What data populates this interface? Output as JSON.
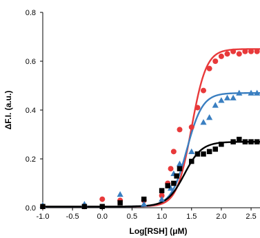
{
  "chart_data": {
    "type": "scatter",
    "title": "",
    "xlabel": "Log[RSH] (μM)",
    "ylabel": "ΔF.I. (a.u.)",
    "xlim": [
      -1.0,
      2.65
    ],
    "ylim": [
      0,
      0.8
    ],
    "x_ticks": [
      -1.0,
      -0.5,
      0.0,
      0.5,
      1.0,
      1.5,
      2.0,
      2.5
    ],
    "x_tick_labels": [
      "-1.0",
      "-0.5",
      "0.0",
      "0.5",
      "1.0",
      "1.5",
      "2.0",
      "2.5"
    ],
    "y_ticks": [
      0.0,
      0.2,
      0.4,
      0.6,
      0.8
    ],
    "y_tick_labels": [
      "0.0",
      "0.2",
      "0.4",
      "0.6",
      "0.8"
    ],
    "grid": false,
    "legend": "none",
    "series": [
      {
        "marker": "circle",
        "color": "#e8393a",
        "x": [
          -1.0,
          -0.3,
          0.0,
          0.3,
          0.7,
          1.0,
          1.1,
          1.15,
          1.2,
          1.3,
          1.5,
          1.6,
          1.7,
          1.8,
          1.9,
          2.0,
          2.1,
          2.2,
          2.3,
          2.4,
          2.5,
          2.6
        ],
        "y": [
          0.005,
          0.005,
          0.035,
          0.03,
          0.03,
          0.05,
          0.1,
          0.16,
          0.23,
          0.32,
          0.33,
          0.41,
          0.48,
          0.57,
          0.6,
          0.62,
          0.63,
          0.64,
          0.63,
          0.64,
          0.64,
          0.64
        ],
        "fit": {
          "bottom": 0.005,
          "top": 0.65,
          "ec50_log": 1.5,
          "hill": 3.5
        }
      },
      {
        "marker": "triangle",
        "color": "#3a7fc1",
        "x": [
          -1.0,
          -0.3,
          0.3,
          0.7,
          1.0,
          1.15,
          1.2,
          1.3,
          1.5,
          1.7,
          1.8,
          1.9,
          2.0,
          2.1,
          2.2,
          2.3,
          2.5,
          2.6
        ],
        "y": [
          0.01,
          0.015,
          0.055,
          0.015,
          0.035,
          0.08,
          0.14,
          0.18,
          0.23,
          0.35,
          0.37,
          0.42,
          0.44,
          0.45,
          0.45,
          0.47,
          0.47,
          0.47
        ],
        "fit": {
          "bottom": 0.005,
          "top": 0.47,
          "ec50_log": 1.42,
          "hill": 3.3
        }
      },
      {
        "marker": "square",
        "color": "#000000",
        "x": [
          -1.0,
          -0.3,
          0.0,
          0.3,
          0.7,
          1.0,
          1.1,
          1.2,
          1.25,
          1.3,
          1.5,
          1.6,
          1.7,
          1.8,
          1.9,
          2.0,
          2.2,
          2.3,
          2.4,
          2.5,
          2.6
        ],
        "y": [
          0.005,
          0.005,
          0.005,
          0.02,
          0.035,
          0.07,
          0.09,
          0.1,
          0.13,
          0.16,
          0.19,
          0.22,
          0.22,
          0.23,
          0.24,
          0.26,
          0.27,
          0.28,
          0.27,
          0.27,
          0.27
        ],
        "fit": {
          "bottom": 0.005,
          "top": 0.27,
          "ec50_log": 1.38,
          "hill": 3.0
        }
      }
    ]
  }
}
